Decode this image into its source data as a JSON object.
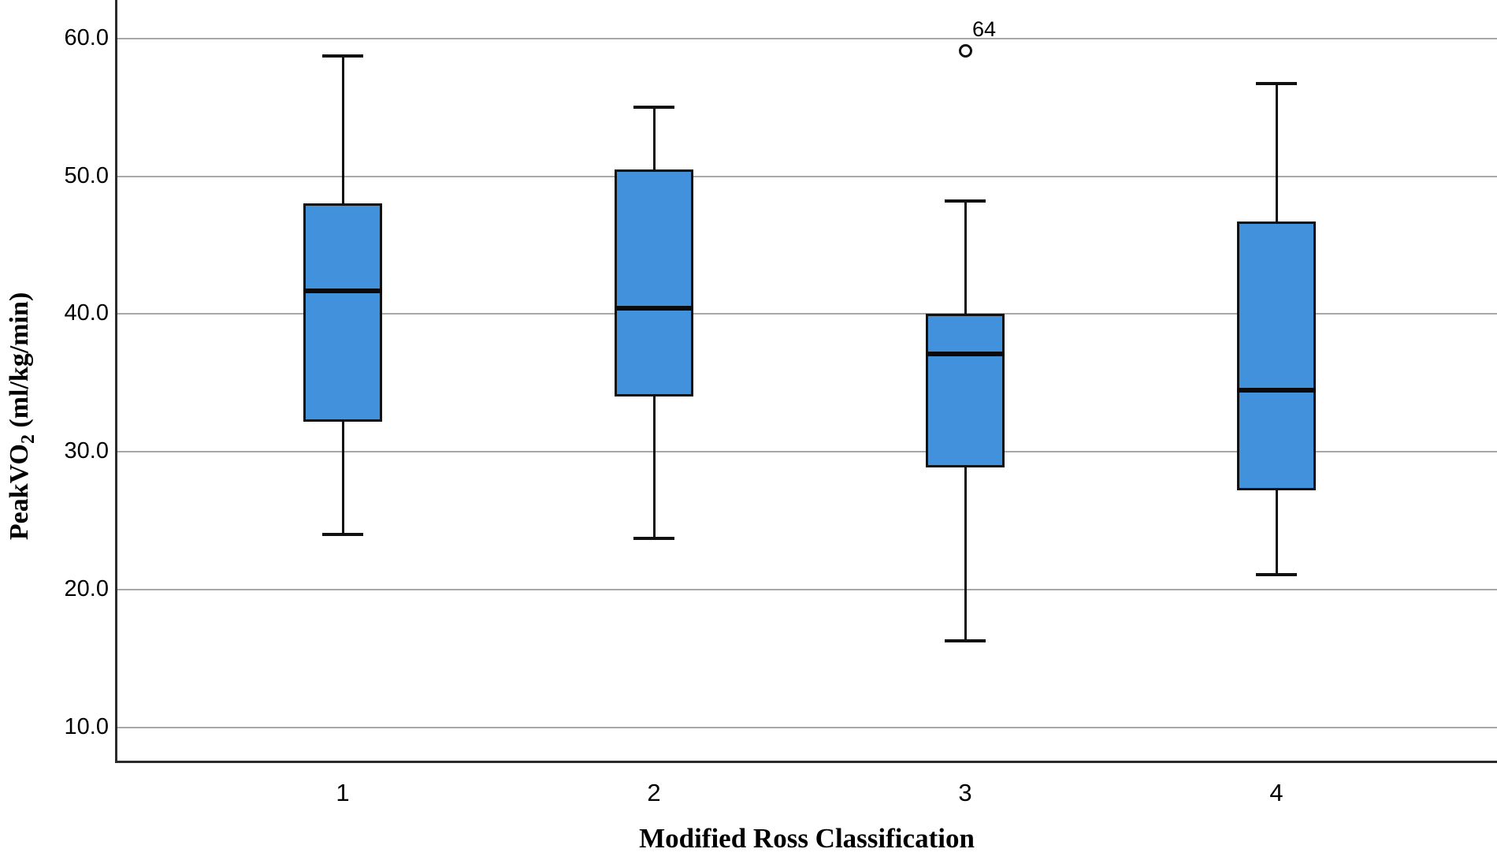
{
  "figure": {
    "y_axis_title_base": "PeakVO",
    "y_axis_title_sub": "2",
    "y_axis_title_unit": " (ml/kg/min)",
    "x_axis_title": "Modified Ross Classification"
  },
  "chart_data": {
    "type": "boxplot",
    "title": "",
    "xlabel": "Modified Ross Classification",
    "ylabel": "PeakVO2 (ml/kg/min)",
    "ylim": [
      7.4,
      62.8
    ],
    "y_ticks": [
      60.0,
      50.0,
      40.0,
      30.0,
      20.0,
      10.0
    ],
    "grid": true,
    "categories": [
      "1",
      "2",
      "3",
      "4"
    ],
    "series": [
      {
        "category": "1",
        "whisker_low": 24.0,
        "q1": 32.2,
        "median": 41.7,
        "q3": 48.0,
        "whisker_high": 58.7,
        "outliers": []
      },
      {
        "category": "2",
        "whisker_low": 23.7,
        "q1": 34.0,
        "median": 40.4,
        "q3": 50.5,
        "whisker_high": 55.0,
        "outliers": []
      },
      {
        "category": "3",
        "whisker_low": 16.3,
        "q1": 28.9,
        "median": 37.1,
        "q3": 40.0,
        "whisker_high": 48.2,
        "outliers": [
          {
            "value": 59.1,
            "label": "64"
          }
        ]
      },
      {
        "category": "4",
        "whisker_low": 21.1,
        "q1": 27.2,
        "median": 34.5,
        "q3": 46.7,
        "whisker_high": 56.7,
        "outliers": []
      }
    ],
    "colors": {
      "box_fill": "#4191dd",
      "box_border": "#111111",
      "median": "#0a0a0a",
      "gridline": "#a8a8a8",
      "axis": "#2b2b2b"
    }
  }
}
